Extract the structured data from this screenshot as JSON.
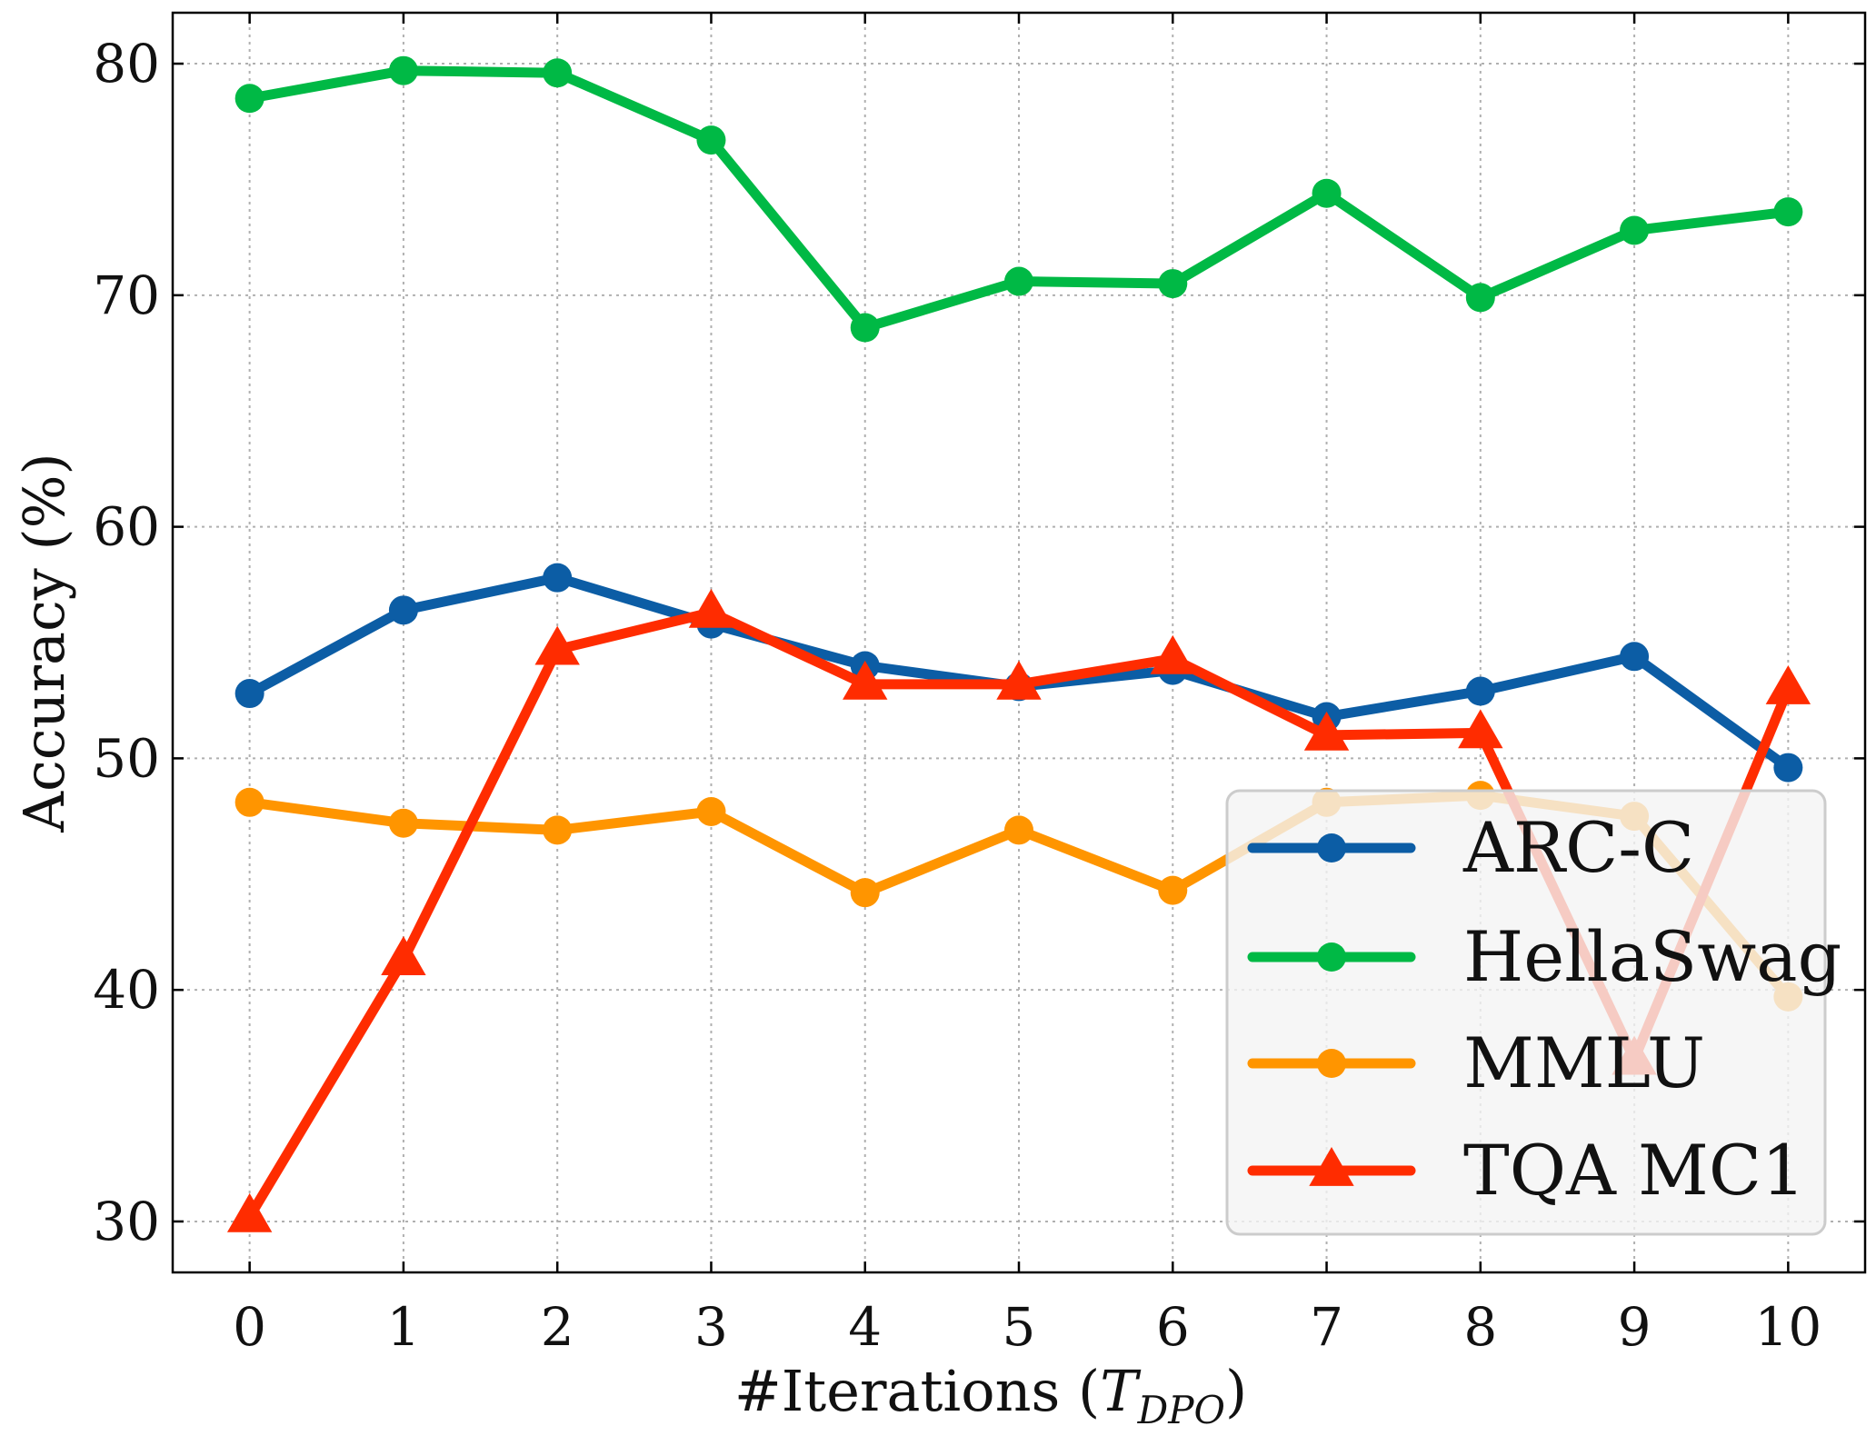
{
  "chart_data": {
    "type": "line",
    "title": "",
    "xlabel_main": "#Iterations (",
    "xlabel_symbol": "T",
    "xlabel_subscript": "DPO",
    "xlabel_close": ")",
    "ylabel": "Accuracy (%)",
    "x": [
      0,
      1,
      2,
      3,
      4,
      5,
      6,
      7,
      8,
      9,
      10
    ],
    "x_ticks": [
      "0",
      "1",
      "2",
      "3",
      "4",
      "5",
      "6",
      "7",
      "8",
      "9",
      "10"
    ],
    "y_ticks": [
      "30",
      "40",
      "50",
      "60",
      "70",
      "80"
    ],
    "xlim": [
      -0.5,
      10.5
    ],
    "ylim": [
      27.8,
      82.2
    ],
    "grid": true,
    "legend_position": "lower-right",
    "series": [
      {
        "name": "ARC-C",
        "color": "#0C5DA5",
        "marker": "circle",
        "values": [
          52.8,
          56.4,
          57.8,
          55.8,
          54.0,
          53.1,
          53.8,
          51.8,
          52.9,
          54.4,
          49.6
        ]
      },
      {
        "name": "HellaSwag",
        "color": "#00B945",
        "marker": "circle",
        "values": [
          78.5,
          79.7,
          79.6,
          76.7,
          68.6,
          70.6,
          70.5,
          74.4,
          69.9,
          72.8,
          73.6
        ]
      },
      {
        "name": "MMLU",
        "color": "#FF9500",
        "marker": "circle",
        "values": [
          48.1,
          47.2,
          46.9,
          47.7,
          44.2,
          46.9,
          44.3,
          48.1,
          48.4,
          47.5,
          39.7
        ]
      },
      {
        "name": "TQA MC1",
        "color": "#FF2C00",
        "marker": "triangle",
        "values": [
          30.2,
          41.3,
          54.7,
          56.3,
          53.2,
          53.2,
          54.3,
          51.0,
          51.1,
          37.0,
          53.0
        ]
      }
    ]
  }
}
